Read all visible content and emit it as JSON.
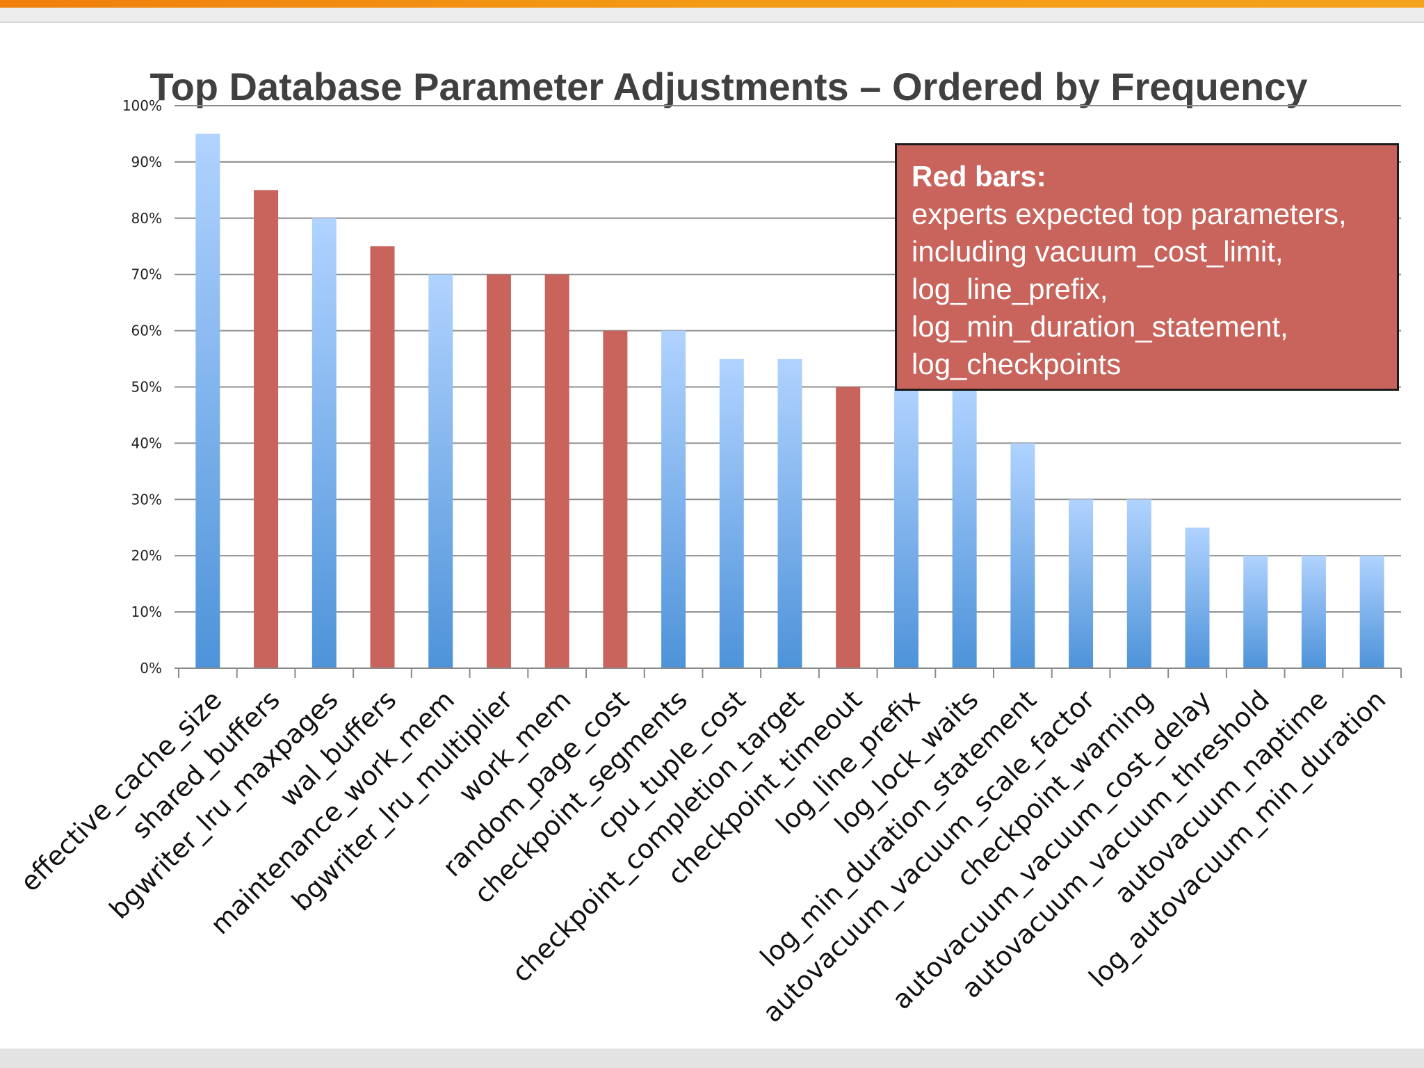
{
  "chart_data": {
    "type": "bar",
    "title": "Top Database Parameter Adjustments – Ordered by Frequency",
    "xlabel": "",
    "ylabel": "",
    "ylim": [
      0,
      100
    ],
    "yticks": [
      "0%",
      "10%",
      "20%",
      "30%",
      "40%",
      "50%",
      "60%",
      "70%",
      "80%",
      "90%",
      "100%"
    ],
    "grid": true,
    "categories": [
      "effective_cache_size",
      "shared_buffers",
      "bgwriter_lru_maxpages",
      "wal_buffers",
      "maintenance_work_mem",
      "bgwriter_lru_multiplier",
      "work_mem",
      "random_page_cost",
      "checkpoint_segments",
      "cpu_tuple_cost",
      "checkpoint_completion_target",
      "checkpoint_timeout",
      "log_line_prefix",
      "log_lock_waits",
      "log_min_duration_statement",
      "autovacuum_vacuum_scale_factor",
      "checkpoint_warning",
      "autovacuum_vacuum_cost_delay",
      "autovacuum_vacuum_threshold",
      "autovacuum_naptime",
      "log_autovacuum_min_duration"
    ],
    "values": [
      95,
      85,
      80,
      75,
      70,
      70,
      70,
      60,
      60,
      55,
      55,
      50,
      50,
      50,
      40,
      30,
      30,
      25,
      20,
      20,
      20
    ],
    "highlighted": [
      false,
      true,
      false,
      true,
      false,
      true,
      true,
      true,
      false,
      false,
      false,
      true,
      false,
      false,
      false,
      false,
      false,
      false,
      false,
      false,
      false
    ],
    "colors": {
      "default_top": "#b1d3ff",
      "default_bottom": "#4e93d9",
      "highlight": "#c8645c",
      "grid": "#8c8c8c"
    }
  },
  "callout": {
    "heading": "Red bars:",
    "lines": [
      "experts expected top parameters,",
      "including vacuum_cost_limit,",
      "log_line_prefix,",
      "log_min_duration_statement,",
      "log_checkpoints"
    ]
  }
}
